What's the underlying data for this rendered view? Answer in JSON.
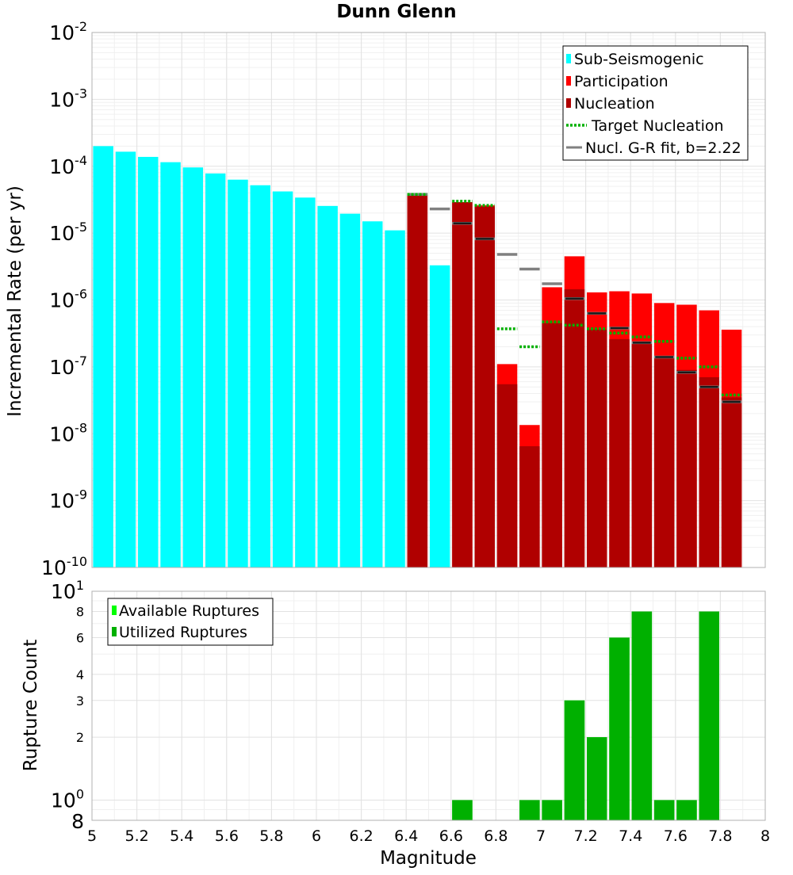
{
  "chart_data": [
    {
      "type": "bar",
      "title": "Dunn Glenn",
      "xlabel": "",
      "ylabel": "Incremental Rate (per yr)",
      "yscale": "log",
      "xlim": [
        5,
        8
      ],
      "ylim": [
        1e-10,
        0.01
      ],
      "ytick_labels": [
        {
          "value": 0.01,
          "base": "10",
          "exp": "-2"
        },
        {
          "value": 0.001,
          "base": "10",
          "exp": "-3"
        },
        {
          "value": 0.0001,
          "base": "10",
          "exp": "-4"
        },
        {
          "value": 1e-05,
          "base": "10",
          "exp": "-5"
        },
        {
          "value": 1e-06,
          "base": "10",
          "exp": "-6"
        },
        {
          "value": 1e-07,
          "base": "10",
          "exp": "-7"
        },
        {
          "value": 1e-08,
          "base": "10",
          "exp": "-8"
        },
        {
          "value": 1e-09,
          "base": "10",
          "exp": "-9"
        },
        {
          "value": 1e-10,
          "base": "10",
          "exp": "-10"
        }
      ],
      "legend": [
        {
          "label": "Sub-Seismogenic",
          "color": "#00ffff",
          "kind": "box"
        },
        {
          "label": "Participation",
          "color": "#ff0000",
          "kind": "box"
        },
        {
          "label": "Nucleation",
          "color": "#b00000",
          "kind": "box"
        },
        {
          "label": "Target Nucleation",
          "color": "#00b000",
          "kind": "dotted"
        },
        {
          "label": "Nucl. G-R fit, b=2.22",
          "color": "#808080",
          "kind": "line"
        }
      ],
      "legend_position": "top-right",
      "series": [
        {
          "name": "Sub-Seismogenic",
          "color": "#00ffff",
          "x": [
            5.05,
            5.15,
            5.25,
            5.35,
            5.45,
            5.55,
            5.65,
            5.75,
            5.85,
            5.95,
            6.05,
            6.15,
            6.25,
            6.35,
            6.55
          ],
          "values": [
            0.0002,
            0.000165,
            0.000138,
            0.000115,
            9.6e-05,
            7.8e-05,
            6.3e-05,
            5.2e-05,
            4.2e-05,
            3.4e-05,
            2.55e-05,
            1.95e-05,
            1.5e-05,
            1.1e-05,
            3.3e-06
          ]
        },
        {
          "name": "Participation",
          "color": "#ff0000",
          "x": [
            6.45,
            6.65,
            6.75,
            6.85,
            6.95,
            7.05,
            7.15,
            7.25,
            7.35,
            7.45,
            7.55,
            7.65,
            7.75,
            7.85
          ],
          "values": [
            3.7e-05,
            2.9e-05,
            2.6e-05,
            1.1e-07,
            1.35e-08,
            1.55e-06,
            4.5e-06,
            1.3e-06,
            1.35e-06,
            1.25e-06,
            9e-07,
            8.5e-07,
            7e-07,
            3.6e-07
          ]
        },
        {
          "name": "Nucleation",
          "color": "#b00000",
          "x": [
            6.45,
            6.65,
            6.75,
            6.85,
            6.95,
            7.05,
            7.15,
            7.25,
            7.35,
            7.45,
            7.55,
            7.65,
            7.75,
            7.85
          ],
          "values": [
            3.7e-05,
            2.9e-05,
            2.5e-05,
            5.5e-08,
            6.5e-09,
            4.5e-07,
            1.45e-06,
            3.6e-07,
            2.6e-07,
            2.2e-07,
            1.4e-07,
            9e-08,
            7e-08,
            3.5e-08
          ]
        },
        {
          "name": "Target Nucleation",
          "color": "#00b000",
          "x": [
            6.45,
            6.65,
            6.75,
            6.85,
            6.95,
            7.05,
            7.15,
            7.25,
            7.35,
            7.45,
            7.55,
            7.65,
            7.75,
            7.85
          ],
          "values": [
            3.8e-05,
            3e-05,
            2.6e-05,
            3.7e-07,
            2e-07,
            4.7e-07,
            4.2e-07,
            3.7e-07,
            3.2e-07,
            2.8e-07,
            2.4e-07,
            1.35e-07,
            1e-07,
            3.8e-08
          ]
        },
        {
          "name": "Nucl. G-R fit, b=2.22",
          "color": "#808080",
          "x": [
            6.45,
            6.55,
            6.65,
            6.75,
            6.85,
            6.95,
            7.05,
            7.15,
            7.25,
            7.35,
            7.45,
            7.55,
            7.65,
            7.75,
            7.85
          ],
          "values": [
            3.8e-05,
            2.3e-05,
            1.4e-05,
            8.2e-06,
            4.8e-06,
            2.9e-06,
            1.75e-06,
            1.05e-06,
            6.3e-07,
            3.8e-07,
            2.3e-07,
            1.4e-07,
            8.3e-08,
            5e-08,
            3e-08
          ]
        },
        {
          "name": "Nucleation markers",
          "color": "#000000",
          "x": [
            6.65,
            6.75,
            7.15,
            7.25,
            7.35,
            7.45,
            7.55,
            7.65,
            7.75,
            7.85
          ],
          "values": [
            1.4e-05,
            8.2e-06,
            1.05e-06,
            6.3e-07,
            3.8e-07,
            2.3e-07,
            1.4e-07,
            8.3e-08,
            5e-08,
            3e-08
          ]
        }
      ]
    },
    {
      "type": "bar",
      "title": "",
      "xlabel": "Magnitude",
      "ylabel": "Rupture Count",
      "yscale": "log",
      "xlim": [
        5,
        8
      ],
      "ylim": [
        0.8,
        10
      ],
      "xtick_labels": [
        "5",
        "5.2",
        "5.4",
        "5.6",
        "5.8",
        "6",
        "6.2",
        "6.4",
        "6.6",
        "6.8",
        "7",
        "7.2",
        "7.4",
        "7.6",
        "7.8",
        "8"
      ],
      "ytick_labels": [
        {
          "value": 10,
          "base": "10",
          "exp": "1"
        },
        {
          "value": 8,
          "base": "8",
          "exp": ""
        },
        {
          "value": 6,
          "base": "6",
          "exp": ""
        },
        {
          "value": 4,
          "base": "4",
          "exp": ""
        },
        {
          "value": 3,
          "base": "3",
          "exp": ""
        },
        {
          "value": 2,
          "base": "2",
          "exp": ""
        },
        {
          "value": 1,
          "base": "10",
          "exp": "0"
        },
        {
          "value": 0.8,
          "base": "8",
          "exp": ""
        }
      ],
      "legend": [
        {
          "label": "Available Ruptures",
          "color": "#00ff00",
          "kind": "box"
        },
        {
          "label": "Utilized Ruptures",
          "color": "#00b000",
          "kind": "box"
        }
      ],
      "legend_position": "top-left",
      "series": [
        {
          "name": "Available Ruptures",
          "color": "#00ff00",
          "x": [
            6.65,
            6.95,
            7.05,
            7.15,
            7.25,
            7.35,
            7.45,
            7.55,
            7.65,
            7.75
          ],
          "values": [
            1,
            1,
            1,
            3,
            2,
            6,
            8,
            1,
            1,
            8
          ]
        },
        {
          "name": "Utilized Ruptures",
          "color": "#00b000",
          "x": [
            6.65,
            6.95,
            7.05,
            7.15,
            7.25,
            7.35,
            7.45,
            7.55,
            7.65,
            7.75
          ],
          "values": [
            1,
            1,
            1,
            3,
            2,
            6,
            8,
            1,
            1,
            8
          ]
        }
      ]
    }
  ]
}
